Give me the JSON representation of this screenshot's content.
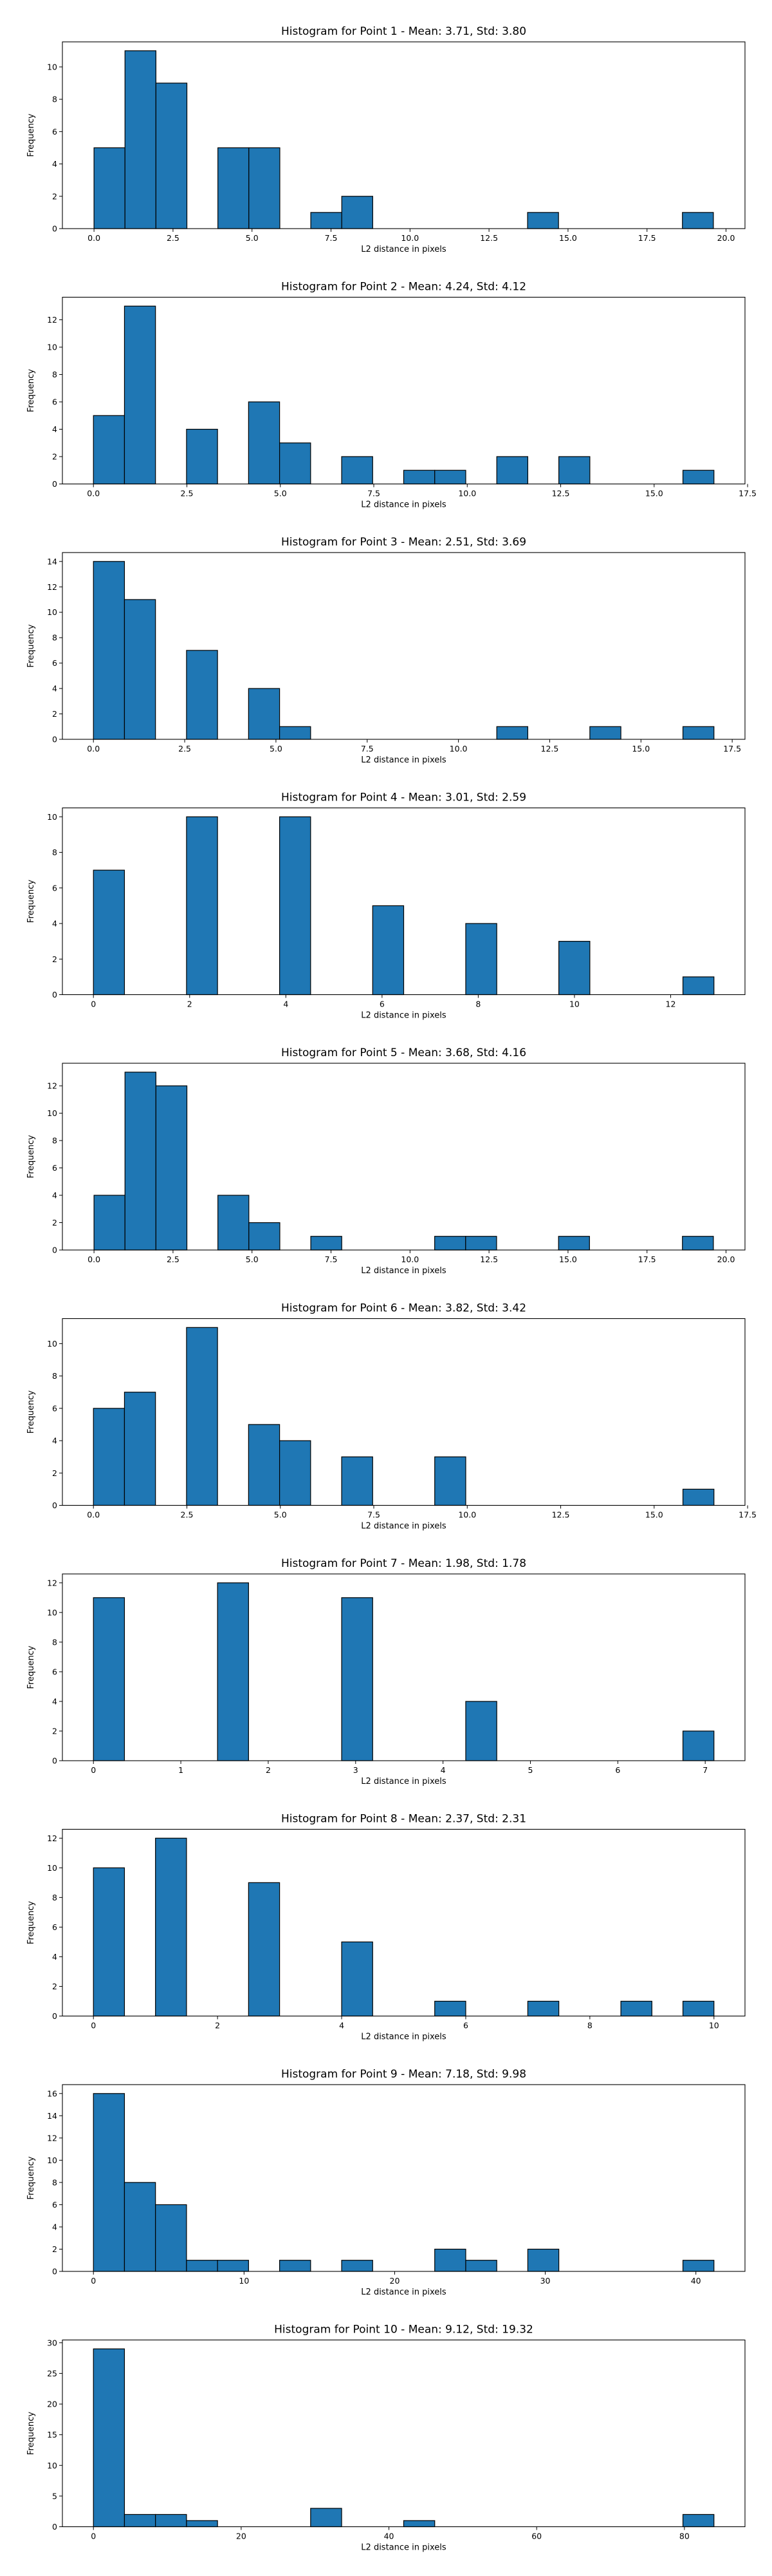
{
  "colors": {
    "bar_fill": "#1f77b4",
    "bar_edge": "#000000",
    "axis": "#000000",
    "background": "#ffffff"
  },
  "chart_data": [
    {
      "type": "bar",
      "title": "Histogram for Point 1 - Mean: 3.71, Std: 3.80",
      "xlabel": "L2 distance in pixels",
      "ylabel": "Frequency",
      "bin_edges": [
        0.0,
        0.98,
        1.96,
        2.94,
        3.92,
        4.9,
        5.88,
        6.86,
        7.84,
        8.82,
        9.8,
        10.78,
        11.76,
        12.74,
        13.72,
        14.7,
        15.68,
        16.66,
        17.64,
        18.62,
        19.6
      ],
      "counts": [
        5,
        11,
        9,
        0,
        5,
        5,
        0,
        1,
        2,
        0,
        0,
        0,
        0,
        0,
        1,
        0,
        0,
        0,
        0,
        1
      ],
      "xlim": [
        -1.0,
        20.6
      ],
      "ylim": [
        0,
        11.55
      ],
      "xticks": [
        0,
        2.5,
        5,
        7.5,
        10,
        12.5,
        15,
        17.5,
        20
      ],
      "xtick_labels": [
        "0.0",
        "2.5",
        "5.0",
        "7.5",
        "10.0",
        "12.5",
        "15.0",
        "17.5",
        "20.0"
      ],
      "yticks": [
        0,
        2,
        4,
        6,
        8,
        10
      ],
      "ytick_labels": [
        "0",
        "2",
        "4",
        "6",
        "8",
        "10"
      ],
      "grid": false
    },
    {
      "type": "bar",
      "title": "Histogram for Point 2 - Mean: 4.24, Std: 4.12",
      "xlabel": "L2 distance in pixels",
      "ylabel": "Frequency",
      "bin_edges": [
        0.0,
        0.83,
        1.66,
        2.49,
        3.32,
        4.15,
        4.98,
        5.81,
        6.64,
        7.47,
        8.3,
        9.13,
        9.96,
        10.79,
        11.62,
        12.45,
        13.28,
        14.11,
        14.94,
        15.77,
        16.6
      ],
      "counts": [
        5,
        13,
        0,
        4,
        0,
        6,
        3,
        0,
        2,
        0,
        1,
        1,
        0,
        2,
        0,
        2,
        0,
        0,
        0,
        1
      ],
      "xlim": [
        -0.83,
        17.43
      ],
      "ylim": [
        0,
        13.65
      ],
      "xticks": [
        0,
        2.5,
        5,
        7.5,
        10,
        12.5,
        15,
        17.5
      ],
      "xtick_labels": [
        "0.0",
        "2.5",
        "5.0",
        "7.5",
        "10.0",
        "12.5",
        "15.0",
        "17.5"
      ],
      "yticks": [
        0,
        2,
        4,
        6,
        8,
        10,
        12
      ],
      "ytick_labels": [
        "0",
        "2",
        "4",
        "6",
        "8",
        "10",
        "12"
      ],
      "grid": false
    },
    {
      "type": "bar",
      "title": "Histogram for Point 3 - Mean: 2.51, Std: 3.69",
      "xlabel": "L2 distance in pixels",
      "ylabel": "Frequency",
      "bin_edges": [
        0.0,
        0.85,
        1.7,
        2.55,
        3.4,
        4.25,
        5.1,
        5.95,
        6.8,
        7.65,
        8.5,
        9.35,
        10.2,
        11.05,
        11.9,
        12.75,
        13.6,
        14.45,
        15.3,
        16.15,
        17.0
      ],
      "counts": [
        14,
        11,
        0,
        7,
        0,
        4,
        1,
        0,
        0,
        0,
        0,
        0,
        0,
        1,
        0,
        0,
        1,
        0,
        0,
        1
      ],
      "xlim": [
        -0.85,
        17.85
      ],
      "ylim": [
        0,
        14.7
      ],
      "xticks": [
        0,
        2.5,
        5,
        7.5,
        10,
        12.5,
        15,
        17.5
      ],
      "xtick_labels": [
        "0.0",
        "2.5",
        "5.0",
        "7.5",
        "10.0",
        "12.5",
        "15.0",
        "17.5"
      ],
      "yticks": [
        0,
        2,
        4,
        6,
        8,
        10,
        12,
        14
      ],
      "ytick_labels": [
        "0",
        "2",
        "4",
        "6",
        "8",
        "10",
        "12",
        "14"
      ],
      "grid": false
    },
    {
      "type": "bar",
      "title": "Histogram for Point 4 - Mean: 3.01, Std: 2.59",
      "xlabel": "L2 distance in pixels",
      "ylabel": "Frequency",
      "bin_edges": [
        0.0,
        0.645,
        1.29,
        1.935,
        2.58,
        3.225,
        3.87,
        4.515,
        5.16,
        5.805,
        6.45,
        7.095,
        7.74,
        8.385,
        9.03,
        9.675,
        10.32,
        10.965,
        11.61,
        12.255,
        12.9
      ],
      "counts": [
        7,
        0,
        0,
        10,
        0,
        0,
        10,
        0,
        0,
        5,
        0,
        0,
        4,
        0,
        0,
        3,
        0,
        0,
        0,
        1
      ],
      "xlim": [
        -0.645,
        13.545
      ],
      "ylim": [
        0,
        10.5
      ],
      "xticks": [
        0,
        2,
        4,
        6,
        8,
        10,
        12
      ],
      "xtick_labels": [
        "0",
        "2",
        "4",
        "6",
        "8",
        "10",
        "12"
      ],
      "yticks": [
        0,
        2,
        4,
        6,
        8,
        10
      ],
      "ytick_labels": [
        "0",
        "2",
        "4",
        "6",
        "8",
        "10"
      ],
      "grid": false
    },
    {
      "type": "bar",
      "title": "Histogram for Point 5 - Mean: 3.68, Std: 4.16",
      "xlabel": "L2 distance in pixels",
      "ylabel": "Frequency",
      "bin_edges": [
        0.0,
        0.98,
        1.96,
        2.94,
        3.92,
        4.9,
        5.88,
        6.86,
        7.84,
        8.82,
        9.8,
        10.78,
        11.76,
        12.74,
        13.72,
        14.7,
        15.68,
        16.66,
        17.64,
        18.62,
        19.6
      ],
      "counts": [
        4,
        13,
        12,
        0,
        4,
        2,
        0,
        1,
        0,
        0,
        0,
        1,
        1,
        0,
        0,
        1,
        0,
        0,
        0,
        1
      ],
      "xlim": [
        -1.0,
        20.6
      ],
      "ylim": [
        0,
        13.65
      ],
      "xticks": [
        0,
        2.5,
        5,
        7.5,
        10,
        12.5,
        15,
        17.5,
        20
      ],
      "xtick_labels": [
        "0.0",
        "2.5",
        "5.0",
        "7.5",
        "10.0",
        "12.5",
        "15.0",
        "17.5",
        "20.0"
      ],
      "yticks": [
        0,
        2,
        4,
        6,
        8,
        10,
        12
      ],
      "ytick_labels": [
        "0",
        "2",
        "4",
        "6",
        "8",
        "10",
        "12"
      ],
      "grid": false
    },
    {
      "type": "bar",
      "title": "Histogram for Point 6 - Mean: 3.82, Std: 3.42",
      "xlabel": "L2 distance in pixels",
      "ylabel": "Frequency",
      "bin_edges": [
        0.0,
        0.83,
        1.66,
        2.49,
        3.32,
        4.15,
        4.98,
        5.81,
        6.64,
        7.47,
        8.3,
        9.13,
        9.96,
        10.79,
        11.62,
        12.45,
        13.28,
        14.11,
        14.94,
        15.77,
        16.6
      ],
      "counts": [
        6,
        7,
        0,
        11,
        0,
        5,
        4,
        0,
        3,
        0,
        0,
        3,
        0,
        0,
        0,
        0,
        0,
        0,
        0,
        1
      ],
      "xlim": [
        -0.83,
        17.43
      ],
      "ylim": [
        0,
        11.55
      ],
      "xticks": [
        0,
        2.5,
        5,
        7.5,
        10,
        12.5,
        15,
        17.5
      ],
      "xtick_labels": [
        "0.0",
        "2.5",
        "5.0",
        "7.5",
        "10.0",
        "12.5",
        "15.0",
        "17.5"
      ],
      "yticks": [
        0,
        2,
        4,
        6,
        8,
        10
      ],
      "ytick_labels": [
        "0",
        "2",
        "4",
        "6",
        "8",
        "10"
      ],
      "grid": false
    },
    {
      "type": "bar",
      "title": "Histogram for Point 7 - Mean: 1.98, Std: 1.78",
      "xlabel": "L2 distance in pixels",
      "ylabel": "Frequency",
      "bin_edges": [
        0.0,
        0.355,
        0.71,
        1.065,
        1.42,
        1.775,
        2.13,
        2.485,
        2.84,
        3.195,
        3.55,
        3.905,
        4.26,
        4.615,
        4.97,
        5.325,
        5.68,
        6.035,
        6.39,
        6.745,
        7.1
      ],
      "counts": [
        11,
        0,
        0,
        0,
        12,
        0,
        0,
        0,
        11,
        0,
        0,
        0,
        4,
        0,
        0,
        0,
        0,
        0,
        0,
        2
      ],
      "xlim": [
        -0.355,
        7.455
      ],
      "ylim": [
        0,
        12.6
      ],
      "xticks": [
        0,
        1,
        2,
        3,
        4,
        5,
        6,
        7
      ],
      "xtick_labels": [
        "0",
        "1",
        "2",
        "3",
        "4",
        "5",
        "6",
        "7"
      ],
      "yticks": [
        0,
        2,
        4,
        6,
        8,
        10,
        12
      ],
      "ytick_labels": [
        "0",
        "2",
        "4",
        "6",
        "8",
        "10",
        "12"
      ],
      "grid": false
    },
    {
      "type": "bar",
      "title": "Histogram for Point 8 - Mean: 2.37, Std: 2.31",
      "xlabel": "L2 distance in pixels",
      "ylabel": "Frequency",
      "bin_edges": [
        0.0,
        0.5,
        1.0,
        1.5,
        2.0,
        2.5,
        3.0,
        3.5,
        4.0,
        4.5,
        5.0,
        5.5,
        6.0,
        6.5,
        7.0,
        7.5,
        8.0,
        8.5,
        9.0,
        9.5,
        10.0
      ],
      "counts": [
        10,
        0,
        12,
        0,
        0,
        9,
        0,
        0,
        5,
        0,
        0,
        1,
        0,
        0,
        1,
        0,
        0,
        1,
        0,
        1
      ],
      "xlim": [
        -0.5,
        10.5
      ],
      "ylim": [
        0,
        12.6
      ],
      "xticks": [
        0,
        2,
        4,
        6,
        8,
        10
      ],
      "xtick_labels": [
        "0",
        "2",
        "4",
        "6",
        "8",
        "10"
      ],
      "yticks": [
        0,
        2,
        4,
        6,
        8,
        10,
        12
      ],
      "ytick_labels": [
        "0",
        "2",
        "4",
        "6",
        "8",
        "10",
        "12"
      ],
      "grid": false
    },
    {
      "type": "bar",
      "title": "Histogram for Point 9 - Mean: 7.18, Std: 9.98",
      "xlabel": "L2 distance in pixels",
      "ylabel": "Frequency",
      "bin_edges": [
        0.0,
        2.06,
        4.12,
        6.18,
        8.24,
        10.3,
        12.36,
        14.42,
        16.48,
        18.54,
        20.6,
        22.66,
        24.72,
        26.78,
        28.84,
        30.9,
        32.96,
        35.02,
        37.08,
        39.14,
        41.2
      ],
      "counts": [
        16,
        8,
        6,
        1,
        1,
        0,
        1,
        0,
        1,
        0,
        0,
        2,
        1,
        0,
        2,
        0,
        0,
        0,
        0,
        1
      ],
      "xlim": [
        -2.06,
        43.26
      ],
      "ylim": [
        0,
        16.8
      ],
      "xticks": [
        0,
        10,
        20,
        30,
        40
      ],
      "xtick_labels": [
        "0",
        "10",
        "20",
        "30",
        "40"
      ],
      "yticks": [
        0,
        2,
        4,
        6,
        8,
        10,
        12,
        14,
        16
      ],
      "ytick_labels": [
        "0",
        "2",
        "4",
        "6",
        "8",
        "10",
        "12",
        "14",
        "16"
      ],
      "grid": false
    },
    {
      "type": "bar",
      "title": "Histogram for Point 10 - Mean: 9.12, Std: 19.32",
      "xlabel": "L2 distance in pixels",
      "ylabel": "Frequency",
      "bin_edges": [
        0.0,
        4.2,
        8.4,
        12.6,
        16.8,
        21.0,
        25.2,
        29.4,
        33.6,
        37.8,
        42.0,
        46.2,
        50.4,
        54.6,
        58.8,
        63.0,
        67.2,
        71.4,
        75.6,
        79.8,
        84.0
      ],
      "counts": [
        29,
        2,
        2,
        1,
        0,
        0,
        0,
        3,
        0,
        0,
        1,
        0,
        0,
        0,
        0,
        0,
        0,
        0,
        0,
        2
      ],
      "xlim": [
        -4.2,
        88.2
      ],
      "ylim": [
        0,
        30.45
      ],
      "xticks": [
        0,
        20,
        40,
        60,
        80
      ],
      "xtick_labels": [
        "0",
        "20",
        "40",
        "60",
        "80"
      ],
      "yticks": [
        0,
        5,
        10,
        15,
        20,
        25,
        30
      ],
      "ytick_labels": [
        "0",
        "5",
        "10",
        "15",
        "20",
        "25",
        "30"
      ],
      "grid": false
    }
  ]
}
